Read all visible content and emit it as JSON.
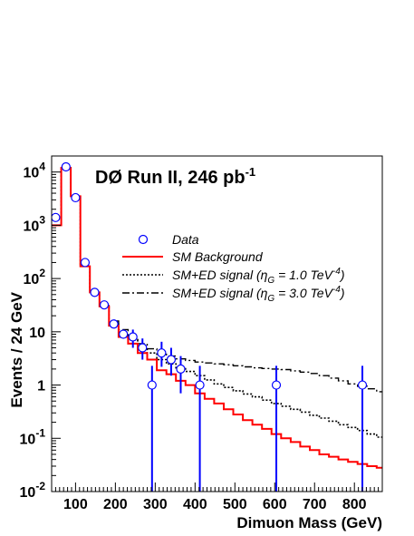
{
  "chart_data": {
    "type": "histogram",
    "title": "DØ Run II, 246 pb",
    "title_superscript": "-1",
    "xlabel": "Dimuon Mass (GeV)",
    "ylabel": "Events / 24 GeV",
    "xlim": [
      40,
      870
    ],
    "ylim": [
      0.01,
      20000
    ],
    "y_scale": "log",
    "grid": false,
    "x_ticks": [
      100,
      200,
      300,
      400,
      500,
      600,
      700,
      800
    ],
    "x_tick_labels": [
      "100",
      "200",
      "300",
      "400",
      "500",
      "600",
      "700",
      "800"
    ],
    "y_ticks": [
      {
        "value": 0.01,
        "base": "10",
        "exp": "-2"
      },
      {
        "value": 0.1,
        "base": "10",
        "exp": "-1"
      },
      {
        "value": 1,
        "base": "1",
        "exp": ""
      },
      {
        "value": 10,
        "base": "10",
        "exp": ""
      },
      {
        "value": 100,
        "base": "10",
        "exp": "2"
      },
      {
        "value": 1000,
        "base": "10",
        "exp": "3"
      },
      {
        "value": 10000,
        "base": "10",
        "exp": "4"
      }
    ],
    "legend": {
      "placement": "center-right",
      "entries": [
        {
          "key": "data",
          "label": "Data"
        },
        {
          "key": "sm",
          "label": "SM Background"
        },
        {
          "key": "ed1",
          "label": "SM+ED signal (η",
          "sub": "G",
          "rest": " = 1.0 TeV",
          "sup": "-4",
          "close": ")"
        },
        {
          "key": "ed3",
          "label": "SM+ED signal (η",
          "sub": "G",
          "rest": " = 3.0 TeV",
          "sup": "-4",
          "close": ")"
        }
      ]
    },
    "bin_edges": [
      40,
      64,
      88,
      112,
      136,
      160,
      184,
      208,
      232,
      256,
      280,
      304,
      328,
      352,
      376,
      400,
      424,
      448,
      472,
      496,
      520,
      544,
      568,
      592,
      616,
      640,
      664,
      688,
      712,
      736,
      760,
      784,
      808,
      832,
      856,
      870
    ],
    "series": [
      {
        "key": "sm",
        "name": "SM Background",
        "style": "solid",
        "color": "#ff0000",
        "values": [
          1000,
          12000,
          3500,
          170,
          55,
          30,
          13,
          8,
          6,
          4,
          3,
          1.9,
          1.6,
          1.2,
          1.0,
          0.7,
          0.55,
          0.45,
          0.35,
          0.28,
          0.22,
          0.18,
          0.15,
          0.12,
          0.1,
          0.085,
          0.07,
          0.06,
          0.05,
          0.045,
          0.04,
          0.036,
          0.033,
          0.03,
          0.028
        ]
      },
      {
        "key": "ed1",
        "name": "SM+ED signal (ηG = 1.0 TeV-4)",
        "style": "dotted",
        "color": "#000000",
        "values": [
          1000,
          12000,
          3500,
          170,
          55,
          30,
          14,
          9,
          7,
          5,
          4,
          3,
          2.5,
          2.1,
          1.8,
          1.5,
          1.25,
          1.05,
          0.9,
          0.78,
          0.68,
          0.6,
          0.52,
          0.45,
          0.4,
          0.35,
          0.31,
          0.27,
          0.24,
          0.21,
          0.18,
          0.16,
          0.14,
          0.12,
          0.105
        ]
      },
      {
        "key": "ed3",
        "name": "SM+ED signal (ηG = 3.0 TeV-4)",
        "style": "dashdot",
        "color": "#000000",
        "values": [
          1000,
          12000,
          3500,
          170,
          55,
          31,
          16,
          11,
          8,
          6,
          4.8,
          4,
          3.5,
          3.1,
          2.9,
          2.7,
          2.6,
          2.5,
          2.4,
          2.3,
          2.2,
          2.1,
          2.05,
          2.0,
          1.95,
          1.85,
          1.75,
          1.65,
          1.5,
          1.35,
          1.2,
          1.05,
          0.95,
          0.85,
          0.75
        ]
      }
    ],
    "data_points": {
      "name": "Data",
      "color": "#0000ff",
      "points": [
        {
          "x": 50,
          "y": 1400
        },
        {
          "x": 76,
          "y": 12500
        },
        {
          "x": 100,
          "y": 3300
        },
        {
          "x": 124,
          "y": 200
        },
        {
          "x": 148,
          "y": 55
        },
        {
          "x": 172,
          "y": 32
        },
        {
          "x": 196,
          "y": 14
        },
        {
          "x": 220,
          "y": 9
        },
        {
          "x": 244,
          "y": 8,
          "err_lo": 5,
          "err_hi": 11
        },
        {
          "x": 268,
          "y": 5,
          "err_lo": 3,
          "err_hi": 7.5
        },
        {
          "x": 292,
          "y": 1,
          "err_lo": 0.01,
          "err_hi": 2.3
        },
        {
          "x": 316,
          "y": 4,
          "err_lo": 2.2,
          "err_hi": 6.5
        },
        {
          "x": 340,
          "y": 3,
          "err_lo": 1.5,
          "err_hi": 5
        },
        {
          "x": 364,
          "y": 2,
          "err_lo": 0.7,
          "err_hi": 3.5
        },
        {
          "x": 412,
          "y": 1,
          "err_lo": 0.01,
          "err_hi": 2.3
        },
        {
          "x": 604,
          "y": 1,
          "err_lo": 0.01,
          "err_hi": 2.3
        },
        {
          "x": 820,
          "y": 1,
          "err_lo": 0.01,
          "err_hi": 2.3
        }
      ]
    }
  }
}
